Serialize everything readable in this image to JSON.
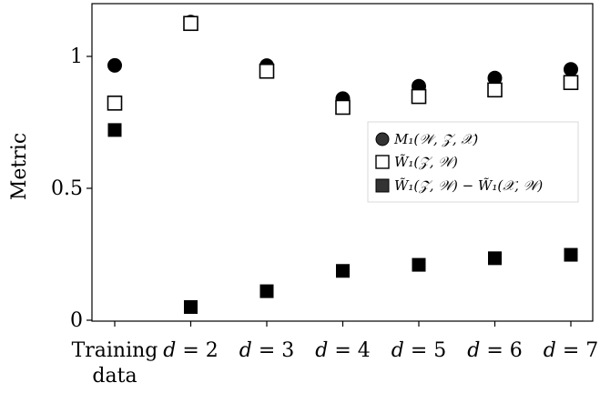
{
  "chart_data": {
    "type": "scatter",
    "categories": [
      "Training data",
      "d = 2",
      "d = 3",
      "d = 4",
      "d = 5",
      "d = 6",
      "d = 7"
    ],
    "category_lines": [
      [
        "Training",
        "data"
      ],
      [
        "d = 2"
      ],
      [
        "d = 3"
      ],
      [
        "d = 4"
      ],
      [
        "d = 5"
      ],
      [
        "d = 6"
      ],
      [
        "d = 7"
      ]
    ],
    "ylabel": "Metric",
    "xlabel": "",
    "title": "",
    "ylim": [
      0,
      1.2
    ],
    "yticks": [
      0,
      0.5,
      1
    ],
    "ytick_labels": [
      "0",
      "0.5",
      "1"
    ],
    "grid": false,
    "legend_position": "center-right",
    "series": [
      {
        "name": "M₁(𝒲, 𝒵, 𝒳)",
        "marker": "circle-filled",
        "color": "#000000",
        "values": [
          0.966,
          1.13,
          0.965,
          0.84,
          0.887,
          0.918,
          0.951
        ]
      },
      {
        "name": "W̃₁(𝒵, 𝒲)",
        "marker": "square-open",
        "color": "#000000",
        "values": [
          0.823,
          1.125,
          0.944,
          0.807,
          0.848,
          0.873,
          0.901
        ]
      },
      {
        "name": "W̃₁(𝒵, 𝒲) − W̃₁(𝒳, 𝒲)",
        "marker": "square-filled",
        "color": "#000000",
        "values": [
          0.721,
          0.05,
          0.11,
          0.187,
          0.21,
          0.235,
          0.248
        ]
      }
    ]
  }
}
